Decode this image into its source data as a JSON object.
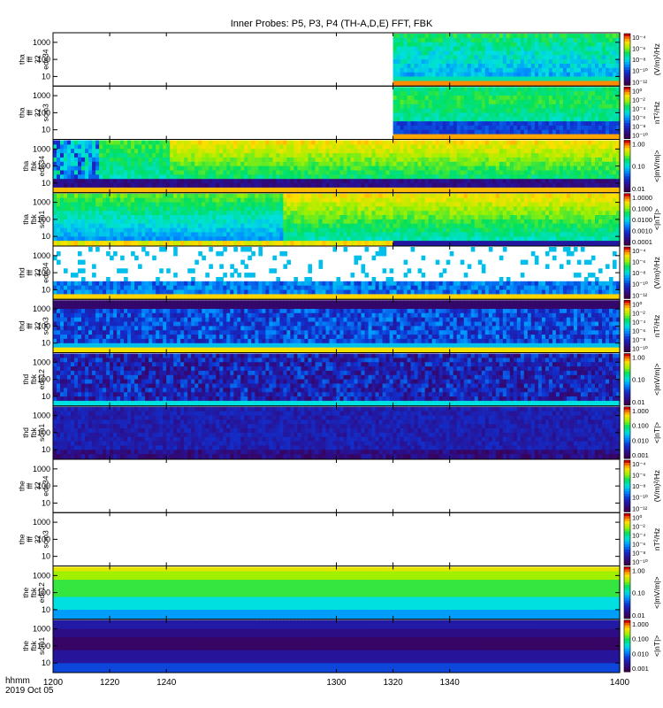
{
  "chart_data": {
    "type": "heatmap",
    "title": "Inner Probes: P5, P3, P4 (TH-A,D,E) FFT, FBK",
    "x_axis": {
      "label_line1": "hhmm",
      "label_line2": "2019 Oct 05",
      "ticks": [
        "1200",
        "1220",
        "1240",
        "1300",
        "1320",
        "1340",
        "1400"
      ],
      "range": [
        1200,
        1400
      ]
    },
    "y_axis": {
      "scale": "log",
      "ticks": [
        "10",
        "100",
        "1000"
      ]
    },
    "panels": [
      {
        "probe": "tha",
        "type": "fff",
        "channels": "32",
        "sensor": "edc34",
        "cb_label": "(V/m)²/Hz",
        "cb_ticks": [
          "10⁻⁴",
          "10⁻⁶",
          "10⁻⁸",
          "10⁻¹⁰",
          "10⁻¹²"
        ],
        "data_start": 1320,
        "pattern": "fft_e"
      },
      {
        "probe": "tha",
        "type": "fff",
        "channels": "32",
        "sensor": "scm3",
        "cb_label": "nT²/Hz",
        "cb_ticks": [
          "10⁰",
          "10⁻²",
          "10⁻⁴",
          "10⁻⁶",
          "10⁻⁸",
          "10⁻¹⁰"
        ],
        "data_start": 1320,
        "pattern": "fft_b"
      },
      {
        "probe": "tha",
        "type": "fbk",
        "channels": "",
        "sensor": "edc34",
        "cb_label": "<|mV/m|>",
        "cb_ticks": [
          "1.00",
          "0.10",
          "0.01"
        ],
        "data_start": 1200,
        "pattern": "fbk_e_a"
      },
      {
        "probe": "tha",
        "type": "fbk",
        "channels": "",
        "sensor": "scm1",
        "cb_label": "<|nT|>",
        "cb_ticks": [
          "1.0000",
          "0.1000",
          "0.0100",
          "0.0010",
          "0.0001"
        ],
        "data_start": 1200,
        "pattern": "fbk_b_a"
      },
      {
        "probe": "thd",
        "type": "fff",
        "channels": "32",
        "sensor": "edc34",
        "cb_label": "(V/m)²/Hz",
        "cb_ticks": [
          "10⁻⁴",
          "10⁻⁶",
          "10⁻⁸",
          "10⁻¹⁰",
          "10⁻¹²"
        ],
        "data_start": 1200,
        "pattern": "fft_e_d"
      },
      {
        "probe": "thd",
        "type": "fff",
        "channels": "32",
        "sensor": "scm3",
        "cb_label": "nT²/Hz",
        "cb_ticks": [
          "10⁰",
          "10⁻²",
          "10⁻⁴",
          "10⁻⁶",
          "10⁻⁸",
          "10⁻¹⁰"
        ],
        "data_start": 1200,
        "pattern": "fft_b_d"
      },
      {
        "probe": "thd",
        "type": "fbk",
        "channels": "",
        "sensor": "edc12",
        "cb_label": "<|mV/m|>",
        "cb_ticks": [
          "1.00",
          "0.10",
          "0.01"
        ],
        "data_start": 1200,
        "pattern": "fbk_e_d"
      },
      {
        "probe": "thd",
        "type": "fbk",
        "channels": "",
        "sensor": "scm1",
        "cb_label": "<|nT|>",
        "cb_ticks": [
          "1.000",
          "0.100",
          "0.010",
          "0.001"
        ],
        "data_start": 1200,
        "pattern": "fbk_b_d"
      },
      {
        "probe": "the",
        "type": "fff",
        "channels": "32",
        "sensor": "edc34",
        "cb_label": "(V/m)²/Hz",
        "cb_ticks": [
          "10⁻⁴",
          "10⁻⁶",
          "10⁻⁸",
          "10⁻¹⁰",
          "10⁻¹²"
        ],
        "data_start": null,
        "pattern": "empty"
      },
      {
        "probe": "the",
        "type": "fff",
        "channels": "32",
        "sensor": "scm3",
        "cb_label": "nT²/Hz",
        "cb_ticks": [
          "10⁰",
          "10⁻²",
          "10⁻⁴",
          "10⁻⁶",
          "10⁻⁸",
          "10⁻¹⁰"
        ],
        "data_start": null,
        "pattern": "empty"
      },
      {
        "probe": "the",
        "type": "fbk",
        "channels": "",
        "sensor": "edc12",
        "cb_label": "<|mV/m|>",
        "cb_ticks": [
          "1.00",
          "0.10",
          "0.01"
        ],
        "data_start": 1200,
        "pattern": "bands_e"
      },
      {
        "probe": "the",
        "type": "fbk",
        "channels": "",
        "sensor": "scm1",
        "cb_label": "<|nT|>",
        "cb_ticks": [
          "1.000",
          "0.100",
          "0.010",
          "0.001"
        ],
        "data_start": 1200,
        "pattern": "bands_b"
      }
    ]
  }
}
